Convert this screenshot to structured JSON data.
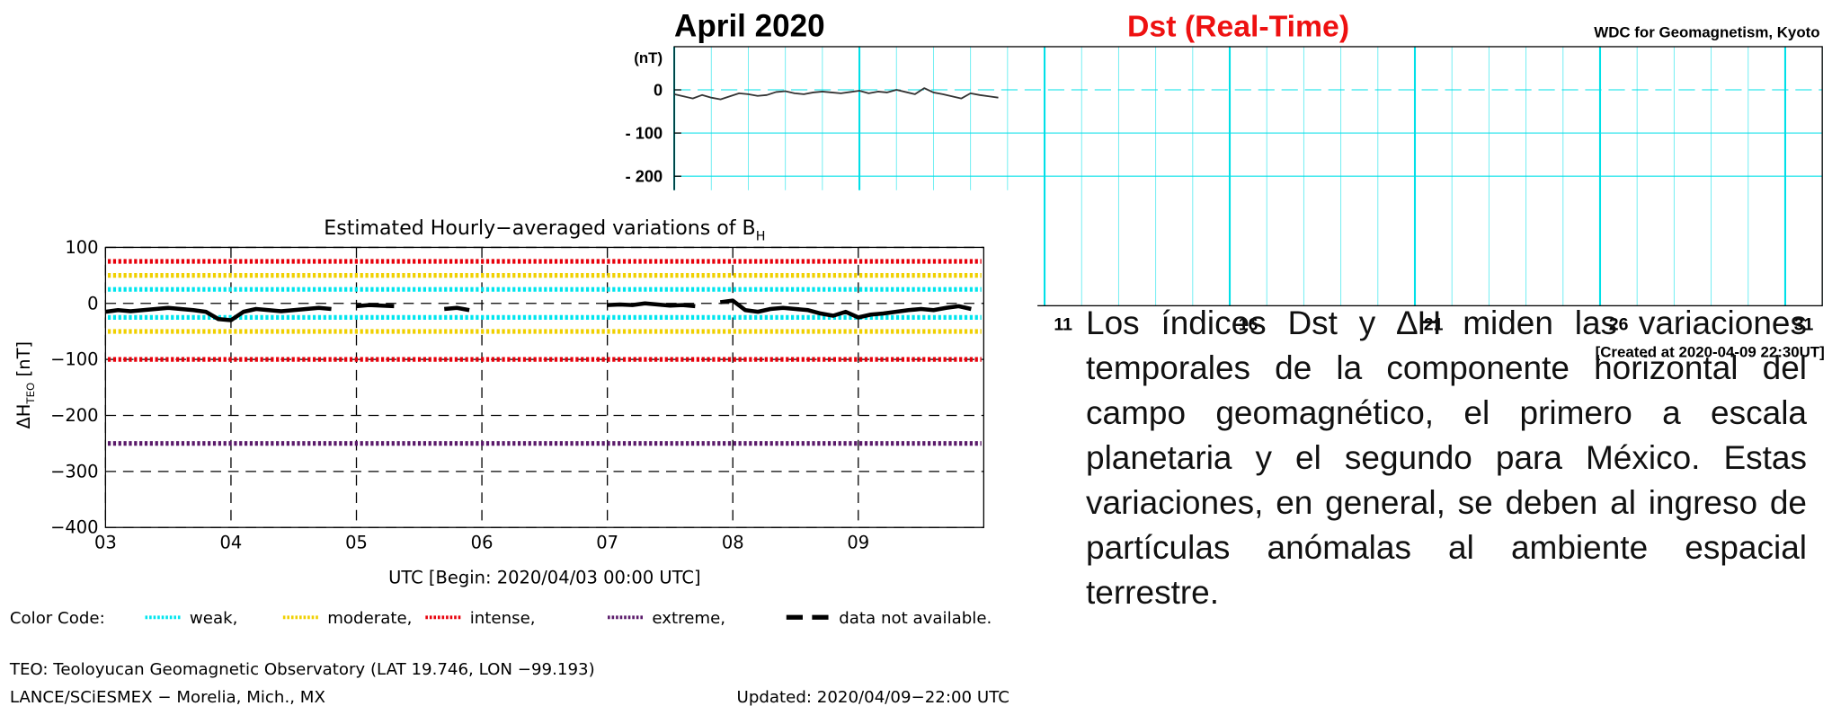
{
  "chart_data": [
    {
      "type": "line",
      "title": "April  2020",
      "subtitle": "Dst (Real-Time)",
      "source": "WDC for Geomagnetism, Kyoto",
      "ylabel": "(nT)",
      "footer": "[Created at 2020-04-09 22:30UT]",
      "x": [
        1.0,
        1.25,
        1.5,
        1.75,
        2.0,
        2.25,
        2.5,
        2.75,
        3.0,
        3.25,
        3.5,
        3.75,
        4.0,
        4.25,
        4.5,
        4.75,
        5.0,
        5.25,
        5.5,
        5.75,
        6.0,
        6.25,
        6.5,
        6.75,
        7.0,
        7.25,
        7.5,
        7.75,
        8.0,
        8.25,
        8.5,
        8.75,
        9.0,
        9.25,
        9.5,
        9.75
      ],
      "values": [
        -10,
        -15,
        -20,
        -12,
        -18,
        -22,
        -15,
        -8,
        -10,
        -14,
        -12,
        -5,
        -3,
        -8,
        -10,
        -6,
        -4,
        -6,
        -8,
        -5,
        -2,
        -8,
        -4,
        -6,
        0,
        -5,
        -10,
        4,
        -6,
        -10,
        -15,
        -20,
        -8,
        -12,
        -15,
        -18
      ],
      "color": "#333333",
      "xlim": [
        1,
        32
      ],
      "xticks": [
        {
          "value": 11.5,
          "label": "11"
        },
        {
          "value": 16.5,
          "label": "16"
        },
        {
          "value": 21.5,
          "label": "21"
        },
        {
          "value": 26.5,
          "label": "26"
        },
        {
          "value": 31.5,
          "label": "31"
        }
      ],
      "ylim": [
        -500,
        100
      ],
      "yticks": [
        0,
        {
          "value": -100,
          "label": "- 100"
        },
        {
          "value": -200,
          "label": "- 200"
        }
      ],
      "grid": true,
      "grid_color": "#00e0e8"
    },
    {
      "type": "line",
      "title": "Estimated Hourly−averaged variations of B",
      "title_subscript": "H",
      "ylabel": "ΔH",
      "ylabel_subscript": "TEO",
      "ylabel_unit": "[nT]",
      "xlabel": "UTC [Begin: 2020/04/03 00:00 UTC]",
      "x": [
        3.0,
        3.1,
        3.2,
        3.3,
        3.4,
        3.5,
        3.6,
        3.7,
        3.8,
        3.9,
        4.0,
        4.1,
        4.2,
        4.3,
        4.4,
        4.5,
        4.6,
        4.7,
        4.8,
        4.9,
        5.0,
        5.1,
        5.2,
        5.3,
        5.4,
        5.5,
        5.6,
        5.7,
        5.8,
        5.9,
        6.0,
        6.1,
        6.2,
        6.3,
        6.4,
        6.5,
        6.6,
        6.7,
        6.8,
        6.9,
        7.0,
        7.1,
        7.2,
        7.3,
        7.4,
        7.5,
        7.6,
        7.7,
        7.8,
        7.9,
        8.0,
        8.1,
        8.2,
        8.3,
        8.4,
        8.5,
        8.6,
        8.7,
        8.8,
        8.9,
        9.0,
        9.1,
        9.2,
        9.3,
        9.4,
        9.5,
        9.6,
        9.7,
        9.8,
        9.9
      ],
      "values": [
        -15,
        -12,
        -14,
        -12,
        -10,
        -8,
        -10,
        -12,
        -15,
        -28,
        -30,
        -15,
        -10,
        -12,
        -14,
        -12,
        -10,
        -8,
        -10,
        null,
        -5,
        -3,
        -4,
        -5,
        null,
        null,
        null,
        -10,
        -8,
        -12,
        null,
        null,
        null,
        null,
        null,
        null,
        null,
        null,
        null,
        null,
        -3,
        -2,
        -3,
        0,
        -2,
        -4,
        -3,
        -5,
        null,
        2,
        5,
        -12,
        -15,
        -10,
        -8,
        -10,
        -12,
        -18,
        -22,
        -15,
        -25,
        -20,
        -18,
        -15,
        -12,
        -10,
        -12,
        -8,
        -5,
        -10
      ],
      "color": "#000000",
      "thresholds": [
        {
          "name": "weak,",
          "color": "#00e5ee",
          "values": [
            25,
            -25
          ]
        },
        {
          "name": "moderate,",
          "color": "#f0d000",
          "values": [
            50,
            -50
          ]
        },
        {
          "name": "intense,",
          "color": "#e8000b",
          "values": [
            75,
            -100
          ]
        },
        {
          "name": "extreme,",
          "color": "#5a1a6a",
          "values": [
            -250
          ]
        }
      ],
      "legend_title": "Color Code:",
      "missing_label": "data not available.",
      "xlim": [
        3,
        10
      ],
      "xticks": [
        {
          "value": 3,
          "label": "03"
        },
        {
          "value": 4,
          "label": "04"
        },
        {
          "value": 5,
          "label": "05"
        },
        {
          "value": 6,
          "label": "06"
        },
        {
          "value": 7,
          "label": "07"
        },
        {
          "value": 8,
          "label": "08"
        },
        {
          "value": 9,
          "label": "09"
        }
      ],
      "ylim": [
        -400,
        100
      ],
      "yticks": [
        100,
        0,
        {
          "value": -100,
          "label": "−100"
        },
        {
          "value": -200,
          "label": "−200"
        },
        {
          "value": -300,
          "label": "−300"
        },
        {
          "value": -400,
          "label": "−400"
        }
      ],
      "grid": true,
      "notes": [
        "TEO: Teoloyucan Geomagnetic Observatory (LAT  19.746, LON −99.193)",
        "LANCE/SCiESMEX − Morelia, Mich., MX"
      ],
      "updated": "Updated: 2020/04/09−22:00 UTC"
    }
  ],
  "description": "Los índices Dst y ∆H miden las variaciones temporales de la componente horizontal del campo geomagnético, el primero a escala planetaria y el segundo para México. Estas variaciones, en general, se deben al ingreso de partículas anómalas al ambiente espacial terrestre."
}
